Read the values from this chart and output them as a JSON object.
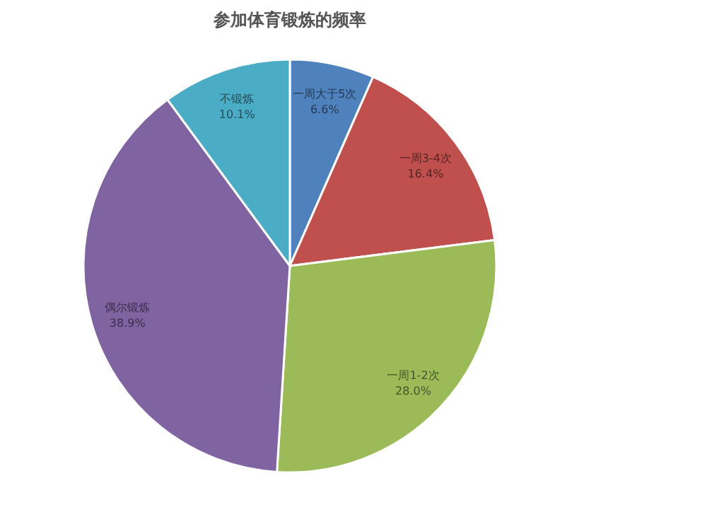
{
  "chart_data": {
    "type": "pie",
    "title": "参加体育锻炼的频率",
    "categories": [
      "一周大于5次",
      "一周3-4次",
      "一周1-2次",
      "偶尔锻炼",
      "不锻炼"
    ],
    "values": [
      6.6,
      16.4,
      28.0,
      38.9,
      10.1
    ],
    "value_labels": [
      "6.6%",
      "16.4%",
      "28.0%",
      "38.9%",
      "10.1%"
    ],
    "colors": [
      "#4f81bd",
      "#c0504d",
      "#9bbb59",
      "#8064a2",
      "#4bacc6"
    ]
  }
}
